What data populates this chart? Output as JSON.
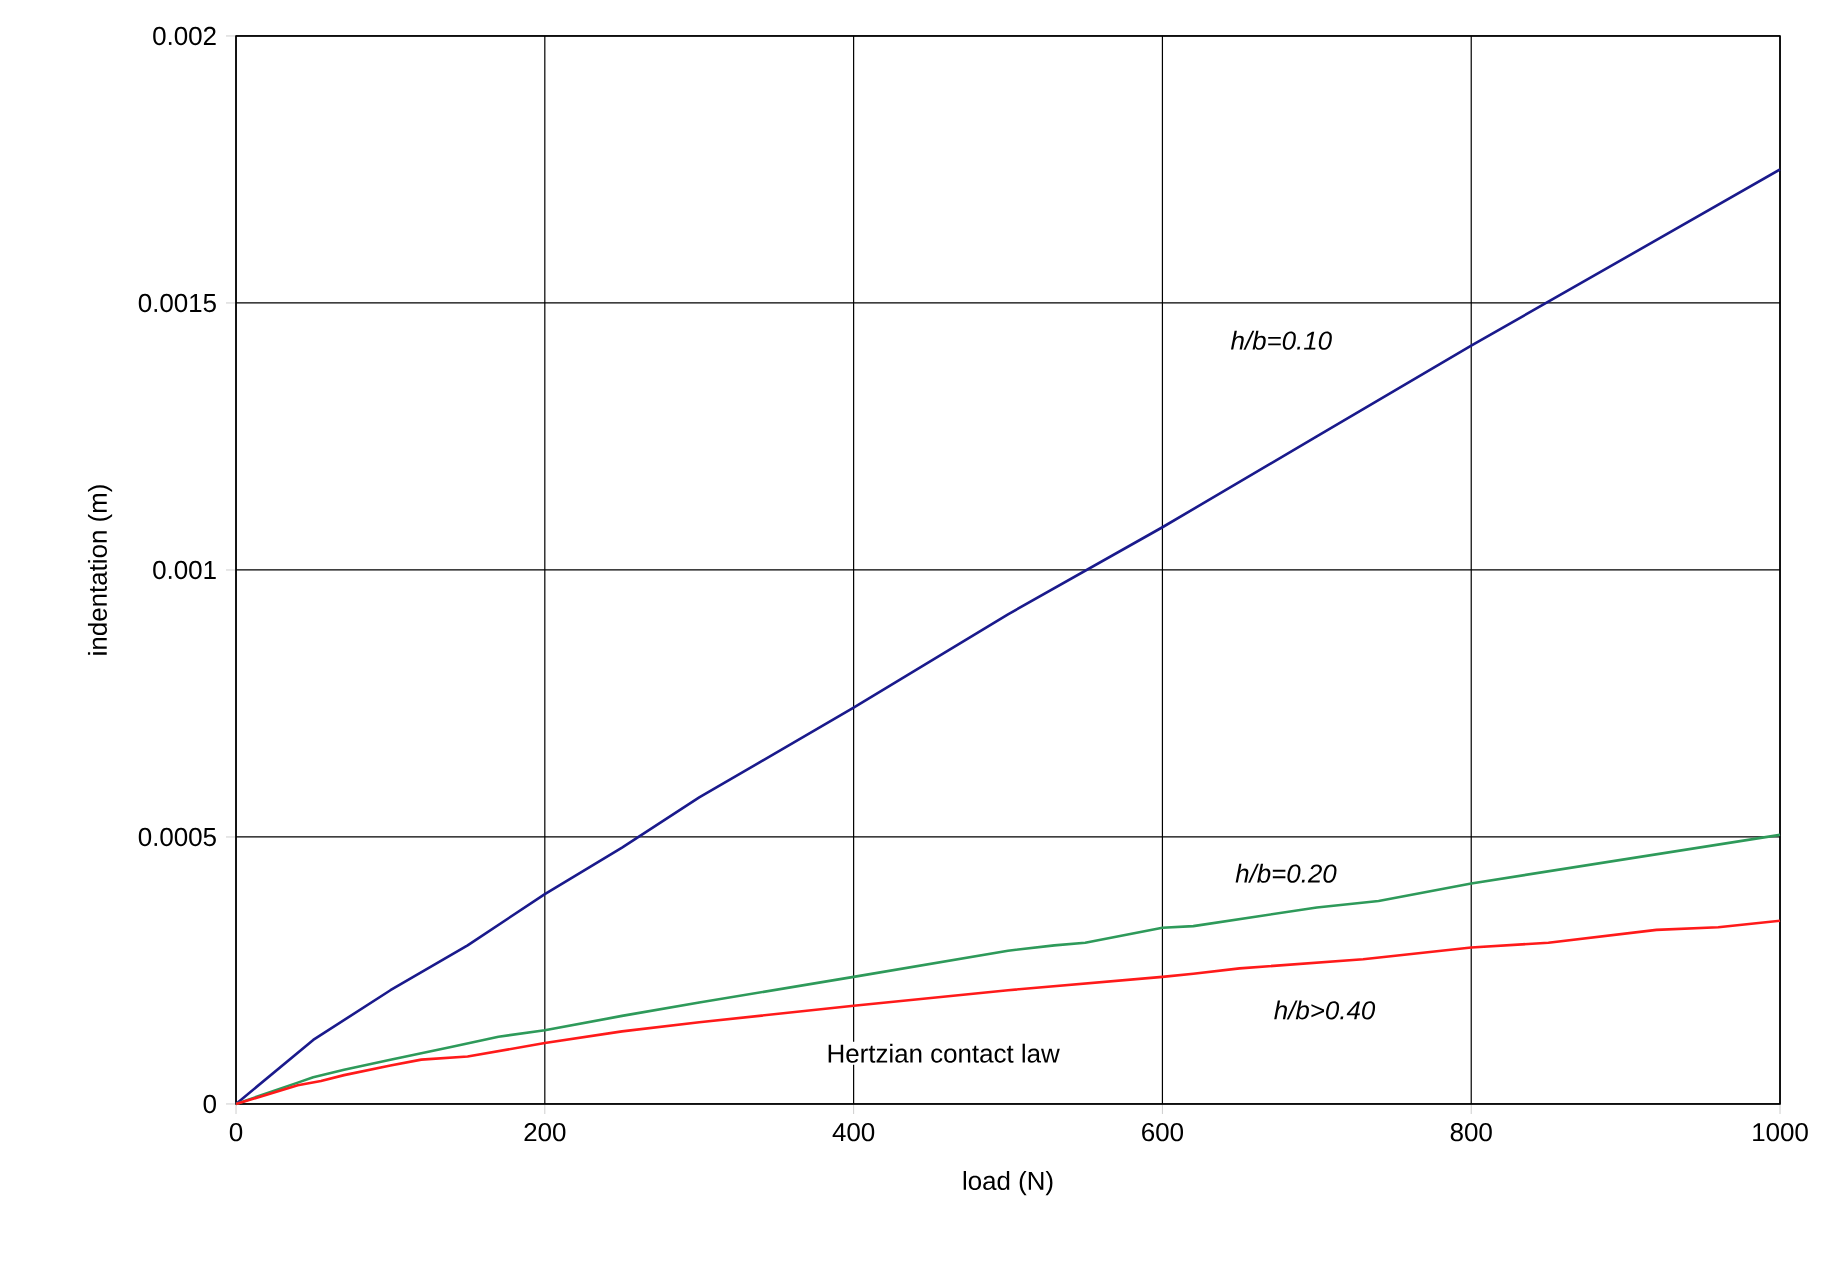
{
  "chart_data": {
    "type": "line",
    "xlabel": "load (N)",
    "ylabel": "indentation (m)",
    "xlim": [
      0,
      1000
    ],
    "xticks": [
      0,
      200,
      400,
      600,
      800,
      1000
    ],
    "ylim": [
      0,
      0.002
    ],
    "yticks": [
      0,
      0.0005,
      0.001,
      0.0015,
      0.002
    ],
    "grid": true,
    "marker": "none",
    "line_style": "solid",
    "series": [
      {
        "name": "h/b=0.10",
        "color": "#1a1a8c",
        "x": [
          0,
          50,
          100,
          150,
          200,
          250,
          300,
          400,
          500,
          600,
          700,
          800,
          1000
        ],
        "values": [
          0,
          0.00012,
          0.000213,
          0.000297,
          0.000393,
          0.00048,
          0.000574,
          0.000742,
          0.000917,
          0.00108,
          0.00125,
          0.00142,
          0.00175
        ]
      },
      {
        "name": "h/b=0.20",
        "color": "#2e9a5a",
        "x": [
          0,
          40,
          50,
          70,
          100,
          140,
          170,
          200,
          250,
          300,
          400,
          500,
          530,
          550,
          600,
          620,
          700,
          740,
          800,
          1000
        ],
        "values": [
          0,
          4e-05,
          5e-05,
          6.4e-05,
          8.3e-05,
          0.000107,
          0.000126,
          0.000138,
          0.000165,
          0.00019,
          0.000238,
          0.000287,
          0.000297,
          0.000302,
          0.00033,
          0.000333,
          0.000368,
          0.00038,
          0.000413,
          0.000504
        ]
      },
      {
        "name": "h/b>0.40",
        "color": "#ff1a1a",
        "x": [
          0,
          40,
          55,
          70,
          100,
          120,
          150,
          200,
          250,
          300,
          400,
          500,
          600,
          620,
          650,
          730,
          800,
          850,
          920,
          960,
          1000
        ],
        "values": [
          0,
          3.5e-05,
          4.3e-05,
          5.4e-05,
          7.2e-05,
          8.3e-05,
          8.9e-05,
          0.000114,
          0.000136,
          0.000153,
          0.000184,
          0.000213,
          0.000238,
          0.000244,
          0.000254,
          0.000271,
          0.000293,
          0.000302,
          0.000326,
          0.000331,
          0.000343
        ]
      }
    ],
    "annotations": [
      "Hertzian contact law"
    ]
  }
}
